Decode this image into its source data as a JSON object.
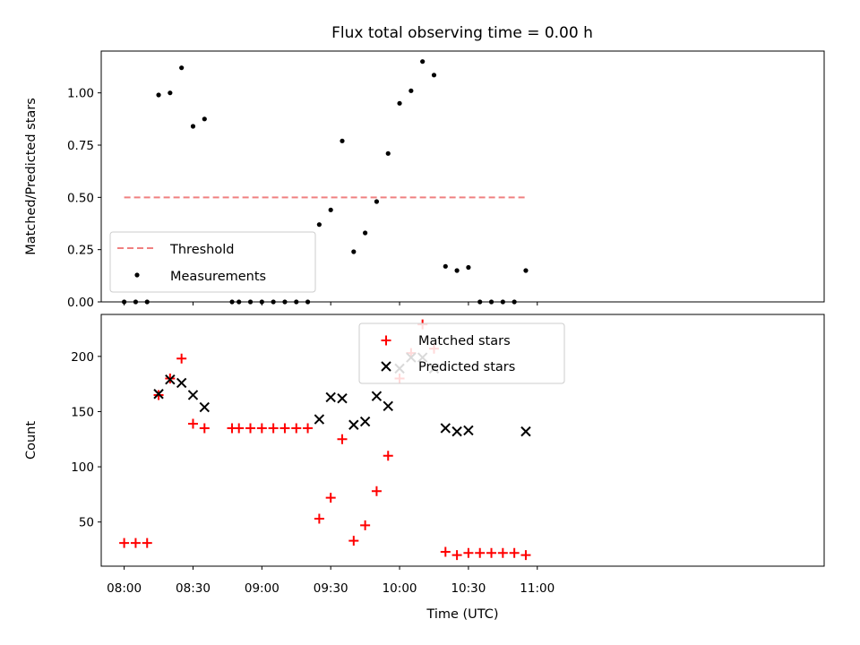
{
  "title": "Flux total observing time = 0.00 h",
  "chart_data": [
    {
      "type": "scatter",
      "ylabel": "Matched/Predicted stars",
      "xlabel": "",
      "ylim": [
        0,
        1.2
      ],
      "xlim_minutes": [
        -10,
        305
      ],
      "yticks": [
        0.0,
        0.25,
        0.5,
        0.75,
        1.0
      ],
      "ytick_labels": [
        "0.00",
        "0.25",
        "0.50",
        "0.75",
        "1.00"
      ],
      "grid": false,
      "legend_position": "bottom-left",
      "threshold": {
        "name": "Threshold",
        "value": 0.5,
        "x_from": "08:00",
        "x_to": "10:55",
        "color": "#f08080"
      },
      "series": [
        {
          "name": "Measurements",
          "color": "#000000",
          "x": [
            "08:00",
            "08:05",
            "08:10",
            "08:15",
            "08:20",
            "08:25",
            "08:30",
            "08:35",
            "08:47",
            "08:50",
            "08:55",
            "09:00",
            "09:05",
            "09:10",
            "09:15",
            "09:20",
            "09:25",
            "09:30",
            "09:35",
            "09:40",
            "09:45",
            "09:50",
            "09:55",
            "10:00",
            "10:05",
            "10:10",
            "10:15",
            "10:20",
            "10:25",
            "10:30",
            "10:35",
            "10:40",
            "10:45",
            "10:50",
            "10:55"
          ],
          "y": [
            0.0,
            0.0,
            0.0,
            0.99,
            1.0,
            1.12,
            0.84,
            0.875,
            0.0,
            0.0,
            0.0,
            0.0,
            0.0,
            0.0,
            0.0,
            0.0,
            0.37,
            0.44,
            0.77,
            0.24,
            0.33,
            0.48,
            0.71,
            0.95,
            1.01,
            1.15,
            1.085,
            0.17,
            0.15,
            0.165,
            0.0,
            0.0,
            0.0,
            0.0,
            0.15
          ]
        }
      ]
    },
    {
      "type": "scatter",
      "ylabel": "Count",
      "xlabel": "Time (UTC)",
      "ylim": [
        10,
        238
      ],
      "xlim_minutes": [
        -10,
        305
      ],
      "yticks": [
        50,
        100,
        150,
        200
      ],
      "ytick_labels": [
        "50",
        "100",
        "150",
        "200"
      ],
      "xticks": [
        "08:00",
        "08:30",
        "09:00",
        "09:30",
        "10:00",
        "10:30",
        "11:00"
      ],
      "grid": false,
      "legend_position": "top-center",
      "series": [
        {
          "name": "Matched stars",
          "color": "#ff0000",
          "marker": "plus",
          "x": [
            "08:00",
            "08:05",
            "08:10",
            "08:15",
            "08:20",
            "08:25",
            "08:30",
            "08:35",
            "08:47",
            "08:50",
            "08:55",
            "09:00",
            "09:05",
            "09:10",
            "09:15",
            "09:20",
            "09:25",
            "09:30",
            "09:35",
            "09:40",
            "09:45",
            "09:50",
            "09:55",
            "10:00",
            "10:05",
            "10:10",
            "10:15",
            "10:20",
            "10:25",
            "10:30",
            "10:35",
            "10:40",
            "10:45",
            "10:50",
            "10:55"
          ],
          "y": [
            31,
            31,
            31,
            165,
            180,
            198,
            139,
            135,
            135,
            135,
            135,
            135,
            135,
            135,
            135,
            135,
            53,
            72,
            125,
            33,
            47,
            78,
            110,
            180,
            203,
            229,
            207,
            23,
            20,
            22,
            22,
            22,
            22,
            22,
            20
          ]
        },
        {
          "name": "Predicted stars",
          "color": "#000000",
          "marker": "x",
          "x": [
            "08:15",
            "08:20",
            "08:25",
            "08:30",
            "08:35",
            "09:25",
            "09:30",
            "09:35",
            "09:40",
            "09:45",
            "09:50",
            "09:55",
            "10:00",
            "10:05",
            "10:10",
            "10:15",
            "10:20",
            "10:25",
            "10:30",
            "10:55"
          ],
          "y": [
            166,
            179,
            176,
            165,
            154,
            143,
            163,
            162,
            138,
            141,
            164,
            155,
            189,
            199,
            199,
            189,
            135,
            132,
            133,
            132
          ]
        }
      ]
    }
  ]
}
